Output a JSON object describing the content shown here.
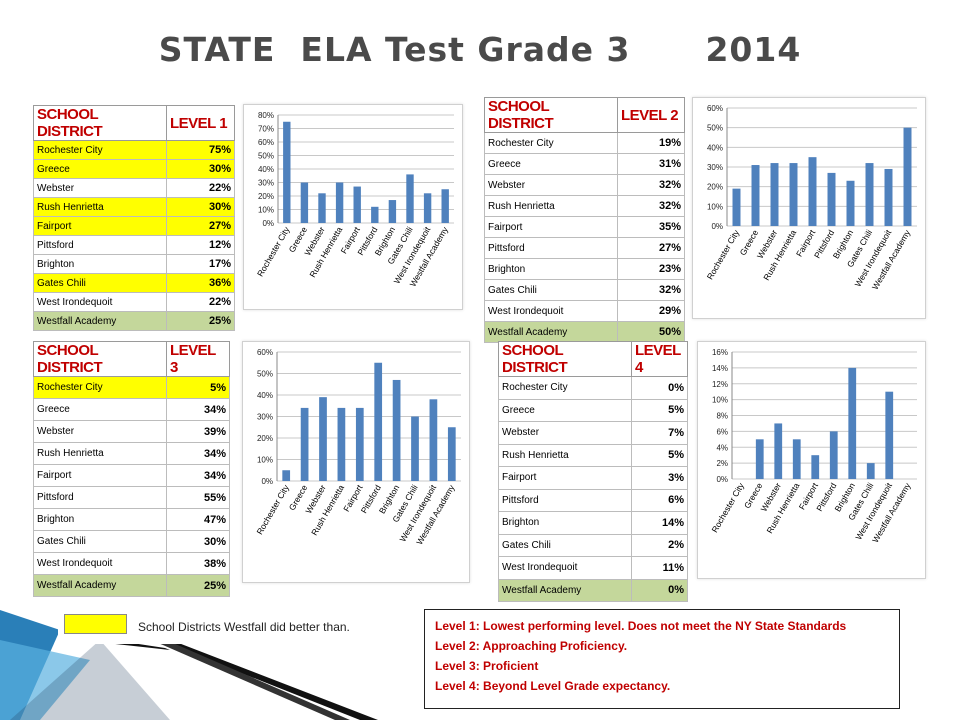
{
  "title": "STATE  ELA Test Grade 3      2014",
  "tables": [
    {
      "header_district": "SCHOOL DISTRICT",
      "header_level": "LEVEL 1",
      "rows": [
        {
          "name": "Rochester City",
          "value": "75%",
          "hl": "yellow"
        },
        {
          "name": "Greece",
          "value": "30%",
          "hl": "yellow"
        },
        {
          "name": "Webster",
          "value": "22%",
          "hl": ""
        },
        {
          "name": "Rush Henrietta",
          "value": "30%",
          "hl": "yellow"
        },
        {
          "name": "Fairport",
          "value": "27%",
          "hl": "yellow"
        },
        {
          "name": "Pittsford",
          "value": "12%",
          "hl": ""
        },
        {
          "name": "Brighton",
          "value": "17%",
          "hl": ""
        },
        {
          "name": "Gates Chili",
          "value": "36%",
          "hl": "yellow"
        },
        {
          "name": "West Irondequoit",
          "value": "22%",
          "hl": ""
        },
        {
          "name": "Westfall Academy",
          "value": "25%",
          "hl": "green"
        }
      ]
    },
    {
      "header_district": "SCHOOL DISTRICT",
      "header_level": "LEVEL 2",
      "rows": [
        {
          "name": "Rochester City",
          "value": "19%",
          "hl": ""
        },
        {
          "name": "Greece",
          "value": "31%",
          "hl": ""
        },
        {
          "name": "Webster",
          "value": "32%",
          "hl": ""
        },
        {
          "name": "Rush Henrietta",
          "value": "32%",
          "hl": ""
        },
        {
          "name": "Fairport",
          "value": "35%",
          "hl": ""
        },
        {
          "name": "Pittsford",
          "value": "27%",
          "hl": ""
        },
        {
          "name": "Brighton",
          "value": "23%",
          "hl": ""
        },
        {
          "name": "Gates Chili",
          "value": "32%",
          "hl": ""
        },
        {
          "name": "West Irondequoit",
          "value": "29%",
          "hl": ""
        },
        {
          "name": "Westfall Academy",
          "value": "50%",
          "hl": "green"
        }
      ]
    },
    {
      "header_district": "SCHOOL DISTRICT",
      "header_level": "LEVEL 3",
      "rows": [
        {
          "name": "Rochester City",
          "value": "5%",
          "hl": "yellow"
        },
        {
          "name": "Greece",
          "value": "34%",
          "hl": ""
        },
        {
          "name": "Webster",
          "value": "39%",
          "hl": ""
        },
        {
          "name": "Rush Henrietta",
          "value": "34%",
          "hl": ""
        },
        {
          "name": "Fairport",
          "value": "34%",
          "hl": ""
        },
        {
          "name": "Pittsford",
          "value": "55%",
          "hl": ""
        },
        {
          "name": "Brighton",
          "value": "47%",
          "hl": ""
        },
        {
          "name": "Gates Chili",
          "value": "30%",
          "hl": ""
        },
        {
          "name": "West Irondequoit",
          "value": "38%",
          "hl": ""
        },
        {
          "name": "Westfall Academy",
          "value": "25%",
          "hl": "green"
        }
      ]
    },
    {
      "header_district": "SCHOOL DISTRICT",
      "header_level": "LEVEL 4",
      "rows": [
        {
          "name": "Rochester City",
          "value": "0%",
          "hl": ""
        },
        {
          "name": "Greece",
          "value": "5%",
          "hl": ""
        },
        {
          "name": "Webster",
          "value": "7%",
          "hl": ""
        },
        {
          "name": "Rush Henrietta",
          "value": "5%",
          "hl": ""
        },
        {
          "name": "Fairport",
          "value": "3%",
          "hl": ""
        },
        {
          "name": "Pittsford",
          "value": "6%",
          "hl": ""
        },
        {
          "name": "Brighton",
          "value": "14%",
          "hl": ""
        },
        {
          "name": "Gates Chili",
          "value": "2%",
          "hl": ""
        },
        {
          "name": "West Irondequoit",
          "value": "11%",
          "hl": ""
        },
        {
          "name": "Westfall Academy",
          "value": "0%",
          "hl": "green"
        }
      ]
    }
  ],
  "chart_data": [
    {
      "type": "bar",
      "categories": [
        "Rochester City",
        "Greece",
        "Webster",
        "Rush Henrietta",
        "Fairport",
        "Pittsford",
        "Brighton",
        "Gates Chili",
        "West Irondequoit",
        "Westfall Academy"
      ],
      "values": [
        75,
        30,
        22,
        30,
        27,
        12,
        17,
        36,
        22,
        25
      ],
      "ylim": [
        0,
        80
      ],
      "yticks": [
        0,
        10,
        20,
        30,
        40,
        50,
        60,
        70,
        80
      ],
      "ytick_labels": [
        "0%",
        "10%",
        "20%",
        "30%",
        "40%",
        "50%",
        "60%",
        "70%",
        "80%"
      ],
      "grid": true,
      "bar_color": "#4f81bd"
    },
    {
      "type": "bar",
      "categories": [
        "Rochester City",
        "Greece",
        "Webster",
        "Rush Henrietta",
        "Fairport",
        "Pittsford",
        "Brighton",
        "Gates Chili",
        "West Irondequoit",
        "Westfall Academy"
      ],
      "values": [
        19,
        31,
        32,
        32,
        35,
        27,
        23,
        32,
        29,
        50
      ],
      "ylim": [
        0,
        60
      ],
      "yticks": [
        0,
        10,
        20,
        30,
        40,
        50,
        60
      ],
      "ytick_labels": [
        "0%",
        "10%",
        "20%",
        "30%",
        "40%",
        "50%",
        "60%"
      ],
      "grid": true,
      "bar_color": "#4f81bd"
    },
    {
      "type": "bar",
      "categories": [
        "Rochester City",
        "Greece",
        "Webster",
        "Rush Henrietta",
        "Fairport",
        "Pittsford",
        "Brighton",
        "Gates Chili",
        "West Irondequoit",
        "Westfall Academy"
      ],
      "values": [
        5,
        34,
        39,
        34,
        34,
        55,
        47,
        30,
        38,
        25
      ],
      "ylim": [
        0,
        60
      ],
      "yticks": [
        0,
        10,
        20,
        30,
        40,
        50,
        60
      ],
      "ytick_labels": [
        "0%",
        "10%",
        "20%",
        "30%",
        "40%",
        "50%",
        "60%"
      ],
      "grid": true,
      "bar_color": "#4f81bd"
    },
    {
      "type": "bar",
      "categories": [
        "Rochester City",
        "Greece",
        "Webster",
        "Rush Henrietta",
        "Fairport",
        "Pittsford",
        "Brighton",
        "Gates Chili",
        "West Irondequoit",
        "Westfall Academy"
      ],
      "values": [
        0,
        5,
        7,
        5,
        3,
        6,
        14,
        2,
        11,
        0
      ],
      "ylim": [
        0,
        16
      ],
      "yticks": [
        0,
        2,
        4,
        6,
        8,
        10,
        12,
        14,
        16
      ],
      "ytick_labels": [
        "0%",
        "2%",
        "4%",
        "6%",
        "8%",
        "10%",
        "12%",
        "14%",
        "16%"
      ],
      "grid": true,
      "bar_color": "#4f81bd"
    }
  ],
  "legend": {
    "swatch_color": "#ffff00",
    "text": "School Districts Westfall did better than."
  },
  "levels_box": [
    {
      "label": "Level 1",
      "desc": ": Lowest performing level. Does not meet the NY State Standards"
    },
    {
      "label": "Level 2",
      "desc": ": Approaching Proficiency."
    },
    {
      "label": "Level 3",
      "desc": ": Proficient"
    },
    {
      "label": "Level 4",
      "desc": ": Beyond Level Grade expectancy."
    }
  ],
  "colors": {
    "title": "#4a4a4a",
    "header_red": "#c00000",
    "highlight_yellow": "#ffff00",
    "highlight_green": "#c4d79b",
    "bar": "#4f81bd"
  }
}
